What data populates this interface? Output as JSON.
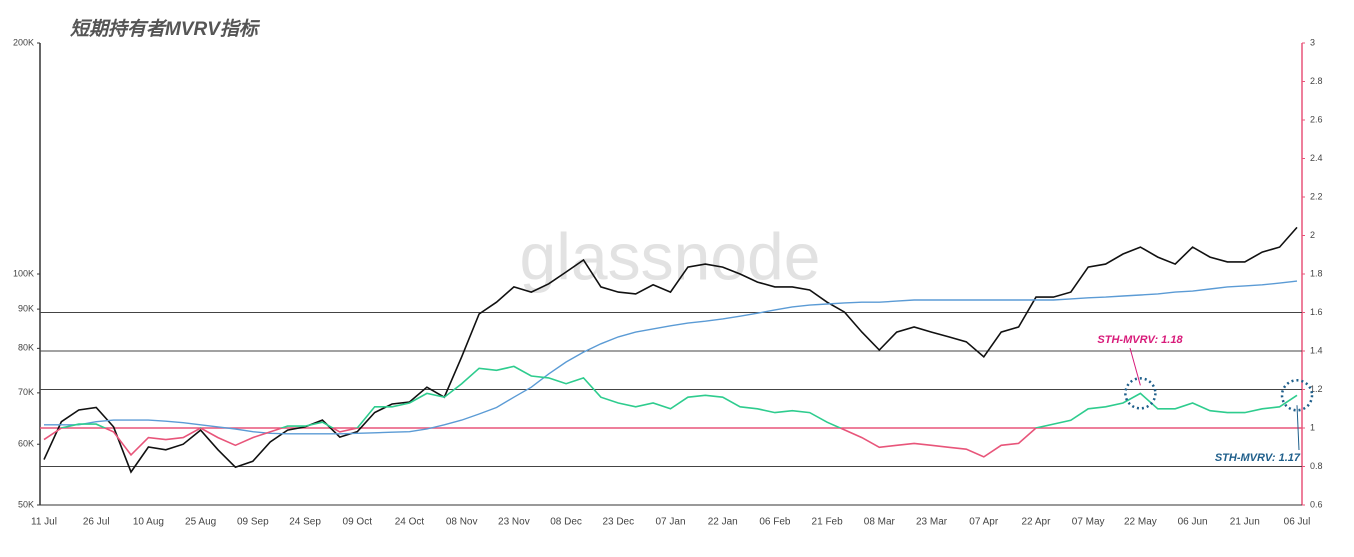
{
  "chart_data": {
    "type": "line",
    "title": "短期持有者MVRV指标",
    "watermark": "glassnode",
    "categories": [
      "11 Jul",
      null,
      null,
      "26 Jul",
      null,
      null,
      "10 Aug",
      null,
      null,
      "25 Aug",
      null,
      null,
      "09 Sep",
      null,
      null,
      "24 Sep",
      null,
      null,
      "09 Oct",
      null,
      null,
      "24 Oct",
      null,
      null,
      "08 Nov",
      null,
      null,
      "23 Nov",
      null,
      null,
      "08 Dec",
      null,
      null,
      "23 Dec",
      null,
      null,
      "07 Jan",
      null,
      null,
      "22 Jan",
      null,
      null,
      "06 Feb",
      null,
      null,
      "21 Feb",
      null,
      null,
      "08 Mar",
      null,
      null,
      "23 Mar",
      null,
      null,
      "07 Apr",
      null,
      null,
      "22 Apr",
      null,
      null,
      "07 May",
      null,
      null,
      "22 May",
      null,
      null,
      "06 Jun",
      null,
      null,
      "21 Jun",
      null,
      null,
      "06 Jul"
    ],
    "series": [
      {
        "color": "#111111",
        "axis": "y",
        "values": [
          57300,
          64200,
          66500,
          67000,
          63200,
          55200,
          59500,
          59000,
          60000,
          62600,
          59000,
          56000,
          57000,
          60400,
          62600,
          63200,
          64500,
          61300,
          62300,
          66000,
          67700,
          68100,
          71200,
          69100,
          78000,
          88700,
          91900,
          96200,
          94700,
          97100,
          100600,
          104300,
          96200,
          94700,
          94200,
          96800,
          94700,
          102100,
          103000,
          102100,
          100000,
          97600,
          96200,
          96200,
          95300,
          91900,
          89200,
          84000,
          79600,
          84000,
          85300,
          84000,
          82800,
          81600,
          78000,
          84000,
          85300,
          93300,
          93300,
          94700,
          102100,
          103000,
          106200,
          108400,
          105200,
          103000,
          108400,
          105200,
          103700,
          103700,
          106800,
          108400,
          115000
        ]
      },
      {
        "color": "#5b9bd5",
        "axis": "y",
        "values": [
          63600,
          63600,
          63600,
          64200,
          64500,
          64500,
          64500,
          64300,
          64000,
          63600,
          63200,
          62800,
          62300,
          62000,
          61900,
          61900,
          61900,
          61900,
          62000,
          62100,
          62200,
          62300,
          62800,
          63600,
          64500,
          65700,
          67000,
          69100,
          71200,
          74100,
          76800,
          79100,
          81100,
          82800,
          84000,
          84800,
          85600,
          86300,
          86800,
          87400,
          88100,
          88900,
          89800,
          90600,
          91100,
          91400,
          91700,
          91900,
          91900,
          92200,
          92500,
          92500,
          92500,
          92500,
          92500,
          92500,
          92500,
          92500,
          92500,
          92800,
          93100,
          93300,
          93600,
          93900,
          94200,
          94700,
          95000,
          95600,
          96200,
          96500,
          96800,
          97300,
          97900
        ]
      },
      {
        "color_above": "#2ecc8e",
        "color_below": "#e8557a",
        "threshold": 1,
        "axis": "y2",
        "values": [
          0.94,
          1.0,
          1.02,
          1.02,
          0.98,
          0.86,
          0.95,
          0.94,
          0.95,
          1.0,
          0.95,
          0.91,
          0.95,
          0.98,
          1.01,
          1.01,
          1.03,
          0.98,
          1.0,
          1.11,
          1.11,
          1.13,
          1.18,
          1.16,
          1.23,
          1.31,
          1.3,
          1.32,
          1.27,
          1.26,
          1.23,
          1.26,
          1.16,
          1.13,
          1.11,
          1.13,
          1.1,
          1.16,
          1.17,
          1.16,
          1.11,
          1.1,
          1.08,
          1.09,
          1.08,
          1.03,
          0.99,
          0.95,
          0.9,
          0.91,
          0.92,
          0.91,
          0.9,
          0.89,
          0.85,
          0.91,
          0.92,
          1.0,
          1.02,
          1.04,
          1.1,
          1.11,
          1.13,
          1.18,
          1.1,
          1.1,
          1.13,
          1.09,
          1.08,
          1.08,
          1.1,
          1.11,
          1.17
        ]
      }
    ],
    "ylog": true,
    "ylim": [
      50000,
      200000
    ],
    "yticks": [
      {
        "value": 50000,
        "label": "50K"
      },
      {
        "value": 60000,
        "label": "60K"
      },
      {
        "value": 70000,
        "label": "70K"
      },
      {
        "value": 80000,
        "label": "80K"
      },
      {
        "value": 90000,
        "label": "90K"
      },
      {
        "value": 100000,
        "label": "100K"
      },
      {
        "value": 200000,
        "label": "200K"
      }
    ],
    "y2lim": [
      0.6,
      3
    ],
    "y2ticks": [
      0.6,
      0.8,
      1,
      1.2,
      1.4,
      1.6,
      1.8,
      2,
      2.2,
      2.4,
      2.6,
      2.8,
      3
    ],
    "hlines": [
      0.8,
      1.2,
      1.4,
      1.6
    ],
    "annotations": [
      {
        "text": "STH-MVRV: 1.18",
        "color": "#d81b7a"
      },
      {
        "text": "STH-MVRV: 1.17",
        "color": "#1f5f8b"
      }
    ]
  }
}
